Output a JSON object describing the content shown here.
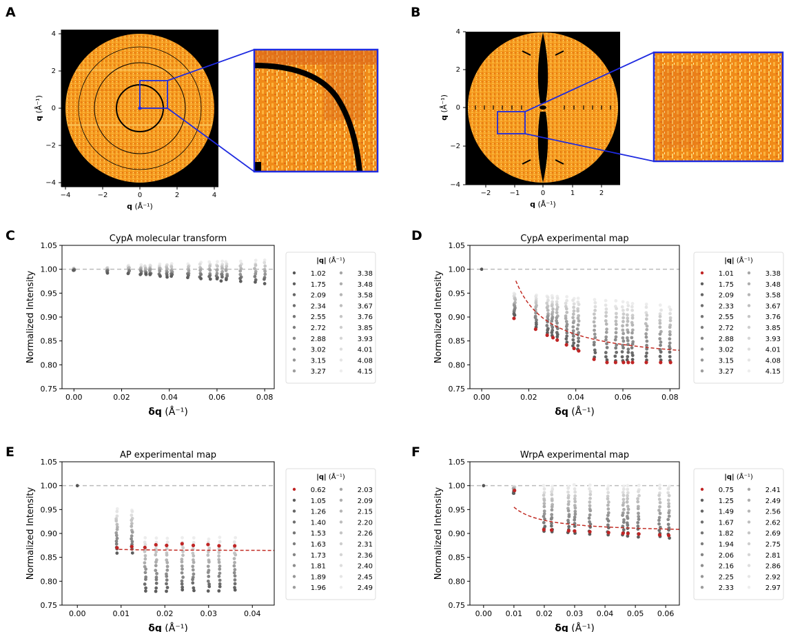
{
  "panel_letters": [
    "A",
    "B",
    "C",
    "D",
    "E",
    "F"
  ],
  "colors": {
    "map_orange": "#f59a1e",
    "map_background": "#000000",
    "zoom_outline": "#1f2be0",
    "fit_line": "#c12a22",
    "reference_line": "#bbbbbb",
    "highlight_point": "#c02525"
  },
  "chart_data": [
    {
      "panel": "A",
      "type": "heatmap",
      "description_visible": "diffraction map with zoom inset",
      "xlabel_bold": "q",
      "xlabel_unit": "(Å⁻¹)",
      "ylabel_bold": "q",
      "ylabel_unit": "(Å⁻¹)",
      "xlim": [
        -4.3,
        4.3
      ],
      "ylim": [
        -4.3,
        4.3
      ],
      "xticks": [
        "−4",
        "−2",
        "0",
        "2",
        "4"
      ],
      "yticks": [
        "4",
        "2",
        "0",
        "−2",
        "−4"
      ],
      "ring_radii": [
        1.27,
        2.45,
        3.3
      ],
      "zoom_box": [
        0,
        1.5,
        0,
        1.5
      ]
    },
    {
      "panel": "B",
      "type": "heatmap",
      "description_visible": "diffraction map with zoom inset",
      "xlabel_bold": "q",
      "xlabel_unit": "(Å⁻¹)",
      "ylabel_bold": "q",
      "ylabel_unit": "(Å⁻¹)",
      "xlim": [
        -2.6,
        2.6
      ],
      "ylim": [
        -4.0,
        4.0
      ],
      "xticks": [
        "−2",
        "−1",
        "0",
        "1",
        "2"
      ],
      "yticks": [
        "4",
        "2",
        "0",
        "−2",
        "−4"
      ],
      "zoom_box": [
        -1.5,
        -0.6,
        -1.35,
        0
      ]
    },
    {
      "panel": "C",
      "type": "scatter",
      "title": "CypA molecular transform",
      "ylabel": "Normalized Intensity",
      "xlabel_bold": "δq",
      "xlabel_unit": "(Å⁻¹)",
      "xlim": [
        -0.005,
        0.084
      ],
      "ylim": [
        0.75,
        1.05
      ],
      "xticks": [
        0.0,
        0.02,
        0.04,
        0.06,
        0.08
      ],
      "yticks": [
        0.75,
        0.8,
        0.85,
        0.9,
        0.95,
        1.0,
        1.05
      ],
      "legend_title_bold": "|q|",
      "legend_title_unit": "(Å⁻¹)",
      "legend": [
        "1.02",
        "1.75",
        "2.09",
        "2.34",
        "2.55",
        "2.72",
        "2.88",
        "3.02",
        "3.15",
        "3.27",
        "3.38",
        "3.48",
        "3.58",
        "3.67",
        "3.76",
        "3.85",
        "3.93",
        "4.01",
        "4.08",
        "4.15"
      ],
      "first_series_red": false,
      "x_columns": [
        0.0,
        0.014,
        0.023,
        0.028,
        0.03,
        0.032,
        0.036,
        0.039,
        0.041,
        0.048,
        0.053,
        0.057,
        0.06,
        0.062,
        0.064,
        0.07,
        0.076,
        0.08
      ],
      "fit_curve": null
    },
    {
      "panel": "D",
      "type": "scatter",
      "title": "CypA experimental map",
      "ylabel": "Normalized Intensity",
      "xlabel_bold": "δq",
      "xlabel_unit": "(Å⁻¹)",
      "xlim": [
        -0.005,
        0.084
      ],
      "ylim": [
        0.75,
        1.05
      ],
      "xticks": [
        0.0,
        0.02,
        0.04,
        0.06,
        0.08
      ],
      "yticks": [
        0.75,
        0.8,
        0.85,
        0.9,
        0.95,
        1.0,
        1.05
      ],
      "legend_title_bold": "|q|",
      "legend_title_unit": "(Å⁻¹)",
      "legend": [
        "1.01",
        "1.75",
        "2.09",
        "2.33",
        "2.55",
        "2.72",
        "2.88",
        "3.02",
        "3.15",
        "3.27",
        "3.38",
        "3.48",
        "3.58",
        "3.67",
        "3.76",
        "3.85",
        "3.93",
        "4.01",
        "4.08",
        "4.15"
      ],
      "first_series_red": true,
      "x_columns": [
        0.014,
        0.023,
        0.028,
        0.03,
        0.032,
        0.036,
        0.039,
        0.041,
        0.048,
        0.053,
        0.057,
        0.06,
        0.062,
        0.064,
        0.07,
        0.076,
        0.08
      ],
      "fit_curve": {
        "x_start": 0.0145,
        "x_end": 0.084,
        "asymptote": 0.8,
        "amplitude": 0.00255,
        "shift": 0.0
      }
    },
    {
      "panel": "E",
      "type": "scatter",
      "title": "AP experimental map",
      "ylabel": "Normalized Intensity",
      "xlabel_bold": "δq",
      "xlabel_unit": "(Å⁻¹)",
      "xlim": [
        -0.0035,
        0.045
      ],
      "ylim": [
        0.75,
        1.05
      ],
      "xticks": [
        0.0,
        0.01,
        0.02,
        0.03,
        0.04
      ],
      "yticks": [
        0.75,
        0.8,
        0.85,
        0.9,
        0.95,
        1.0,
        1.05
      ],
      "legend_title_bold": "|q|",
      "legend_title_unit": "(Å⁻¹)",
      "legend": [
        "0.62",
        "1.05",
        "1.26",
        "1.40",
        "1.53",
        "1.63",
        "1.73",
        "1.81",
        "1.89",
        "1.96",
        "2.03",
        "2.09",
        "2.15",
        "2.20",
        "2.26",
        "2.31",
        "2.36",
        "2.40",
        "2.45",
        "2.49"
      ],
      "first_series_red": true,
      "x_columns": [
        0.009,
        0.0125,
        0.0155,
        0.018,
        0.0205,
        0.024,
        0.0265,
        0.03,
        0.0325,
        0.036
      ],
      "fit_curve": {
        "x_start": 0.0095,
        "x_end": 0.045,
        "asymptote": 0.864,
        "amplitude": 2.5e-05,
        "shift": 0.0
      }
    },
    {
      "panel": "F",
      "type": "scatter",
      "title": "WrpA experimental map",
      "ylabel": "Normalized Intensity",
      "xlabel_bold": "δq",
      "xlabel_unit": "(Å⁻¹)",
      "xlim": [
        -0.0045,
        0.0645
      ],
      "ylim": [
        0.75,
        1.05
      ],
      "xticks": [
        0.0,
        0.01,
        0.02,
        0.03,
        0.04,
        0.05,
        0.06
      ],
      "yticks": [
        0.75,
        0.8,
        0.85,
        0.9,
        0.95,
        1.0,
        1.05
      ],
      "legend_title_bold": "|q|",
      "legend_title_unit": "(Å⁻¹)",
      "legend": [
        "0.75",
        "1.25",
        "1.49",
        "1.67",
        "1.82",
        "1.94",
        "2.06",
        "2.16",
        "2.25",
        "2.33",
        "2.41",
        "2.49",
        "2.56",
        "2.62",
        "2.69",
        "2.75",
        "2.81",
        "2.86",
        "2.92",
        "2.97"
      ],
      "first_series_red": true,
      "x_columns": [
        0.01,
        0.02,
        0.0225,
        0.028,
        0.03,
        0.035,
        0.041,
        0.046,
        0.0475,
        0.051,
        0.058,
        0.061
      ],
      "fit_curve": {
        "x_start": 0.01,
        "x_end": 0.0645,
        "asymptote": 0.9,
        "amplitude": 0.00055,
        "shift": 0.0
      }
    }
  ]
}
